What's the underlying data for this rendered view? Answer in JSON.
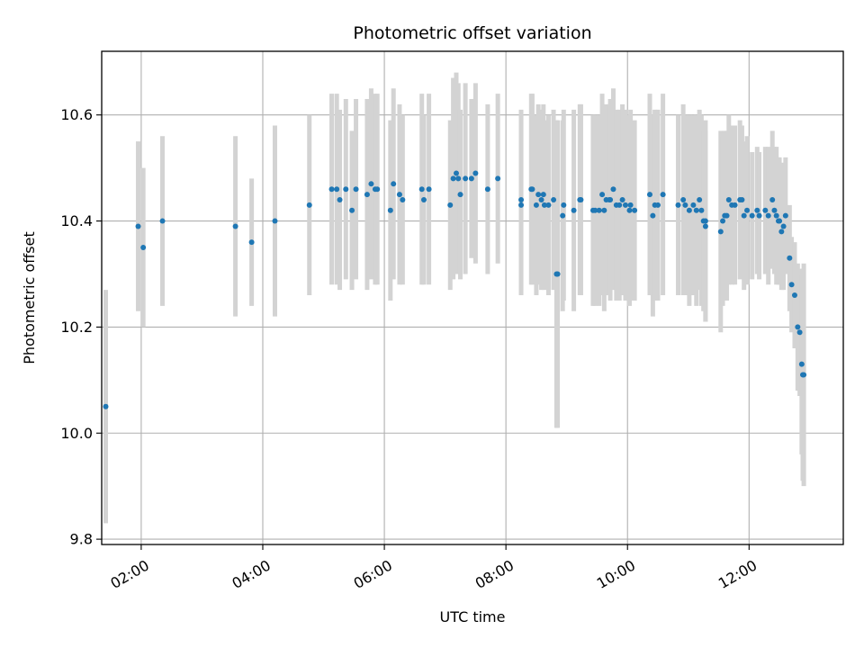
{
  "chart_data": {
    "type": "scatter",
    "title": "Photometric offset variation",
    "xlabel": "UTC time",
    "ylabel": "Photometric offset",
    "xlim": [
      "01:21",
      "13:33"
    ],
    "ylim": [
      9.79,
      10.72
    ],
    "xticks": [
      "02:00",
      "04:00",
      "06:00",
      "08:00",
      "10:00",
      "12:00"
    ],
    "yticks": [
      "9.8",
      "10.0",
      "10.2",
      "10.4",
      "10.6"
    ],
    "grid": true,
    "colors": {
      "marker": "#1f77b4",
      "errorbar": "#d3d3d3",
      "grid": "#b0b0b0"
    },
    "series": [
      {
        "x": [
          "01:25",
          "01:57",
          "02:02",
          "02:21",
          "03:33",
          "03:49",
          "04:12",
          "04:46",
          "05:08",
          "05:13",
          "05:16",
          "05:22",
          "05:28",
          "05:32",
          "05:43",
          "05:47",
          "05:51",
          "05:53",
          "06:06",
          "06:09",
          "06:15",
          "06:18",
          "06:37",
          "06:39",
          "06:44",
          "07:05",
          "07:08",
          "07:11",
          "07:13",
          "07:15",
          "07:20",
          "07:26",
          "07:30",
          "07:42",
          "07:52",
          "08:15",
          "08:15",
          "08:25",
          "08:26",
          "08:30",
          "08:32",
          "08:35",
          "08:37",
          "08:38",
          "08:42",
          "08:47",
          "08:50",
          "08:51",
          "08:56",
          "08:57",
          "09:07",
          "09:13",
          "09:14",
          "09:26",
          "09:28",
          "09:32",
          "09:35",
          "09:37",
          "09:39",
          "09:42",
          "09:43",
          "09:46",
          "09:49",
          "09:52",
          "09:55",
          "09:58",
          "10:02",
          "10:03",
          "10:07",
          "10:22",
          "10:25",
          "10:27",
          "10:30",
          "10:35",
          "10:50",
          "10:55",
          "10:57",
          "11:01",
          "11:05",
          "11:08",
          "11:11",
          "11:13",
          "11:15",
          "11:17",
          "11:17",
          "11:32",
          "11:34",
          "11:36",
          "11:38",
          "11:40",
          "11:43",
          "11:46",
          "11:51",
          "11:53",
          "11:55",
          "11:58",
          "12:03",
          "12:08",
          "12:10",
          "12:16",
          "12:19",
          "12:23",
          "12:25",
          "12:27",
          "12:29",
          "12:30",
          "12:32",
          "12:34",
          "12:36",
          "12:40",
          "12:42",
          "12:45",
          "12:48",
          "12:50",
          "12:52",
          "12:53",
          "12:54"
        ],
        "y": [
          10.05,
          10.39,
          10.35,
          10.4,
          10.39,
          10.36,
          10.4,
          10.43,
          10.46,
          10.46,
          10.44,
          10.46,
          10.42,
          10.46,
          10.45,
          10.47,
          10.46,
          10.46,
          10.42,
          10.47,
          10.45,
          10.44,
          10.46,
          10.44,
          10.46,
          10.43,
          10.48,
          10.49,
          10.48,
          10.45,
          10.48,
          10.48,
          10.49,
          10.46,
          10.48,
          10.44,
          10.43,
          10.46,
          10.46,
          10.43,
          10.45,
          10.44,
          10.45,
          10.43,
          10.43,
          10.44,
          10.3,
          10.3,
          10.41,
          10.43,
          10.42,
          10.44,
          10.44,
          10.42,
          10.42,
          10.42,
          10.45,
          10.42,
          10.44,
          10.44,
          10.44,
          10.46,
          10.43,
          10.43,
          10.44,
          10.43,
          10.42,
          10.43,
          10.42,
          10.45,
          10.41,
          10.43,
          10.43,
          10.45,
          10.43,
          10.44,
          10.43,
          10.42,
          10.43,
          10.42,
          10.44,
          10.42,
          10.4,
          10.4,
          10.39,
          10.38,
          10.4,
          10.41,
          10.41,
          10.44,
          10.43,
          10.43,
          10.44,
          10.44,
          10.41,
          10.42,
          10.41,
          10.42,
          10.41,
          10.42,
          10.41,
          10.44,
          10.42,
          10.41,
          10.4,
          10.4,
          10.38,
          10.39,
          10.41,
          10.33,
          10.28,
          10.26,
          10.2,
          10.19,
          10.13,
          10.11,
          10.11
        ],
        "yerr": [
          0.22,
          0.16,
          0.15,
          0.16,
          0.17,
          0.12,
          0.18,
          0.17,
          0.18,
          0.18,
          0.17,
          0.17,
          0.15,
          0.17,
          0.18,
          0.18,
          0.18,
          0.18,
          0.17,
          0.18,
          0.17,
          0.16,
          0.18,
          0.16,
          0.18,
          0.16,
          0.19,
          0.19,
          0.18,
          0.16,
          0.18,
          0.15,
          0.17,
          0.16,
          0.16,
          0.17,
          0.17,
          0.18,
          0.18,
          0.17,
          0.17,
          0.17,
          0.17,
          0.16,
          0.17,
          0.17,
          0.29,
          0.29,
          0.18,
          0.18,
          0.19,
          0.18,
          0.18,
          0.18,
          0.18,
          0.18,
          0.19,
          0.19,
          0.18,
          0.18,
          0.19,
          0.19,
          0.18,
          0.18,
          0.18,
          0.18,
          0.18,
          0.18,
          0.17,
          0.19,
          0.19,
          0.18,
          0.18,
          0.19,
          0.17,
          0.18,
          0.17,
          0.18,
          0.17,
          0.18,
          0.17,
          0.18,
          0.17,
          0.19,
          0.18,
          0.19,
          0.16,
          0.16,
          0.16,
          0.16,
          0.15,
          0.15,
          0.15,
          0.14,
          0.14,
          0.14,
          0.12,
          0.12,
          0.12,
          0.12,
          0.13,
          0.13,
          0.12,
          0.13,
          0.12,
          0.12,
          0.11,
          0.12,
          0.11,
          0.1,
          0.09,
          0.1,
          0.12,
          0.12,
          0.17,
          0.2,
          0.21
        ]
      }
    ]
  }
}
